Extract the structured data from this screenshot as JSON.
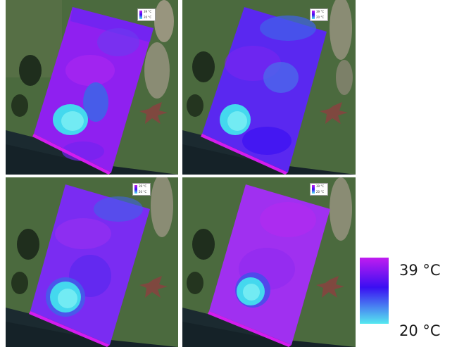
{
  "legend": {
    "max_label": "39 °C",
    "min_label": "20 °C",
    "max_color": "#c01cf0",
    "mid_color": "#3a0ff2",
    "min_color": "#55e8f0"
  },
  "mini_legend": {
    "max_label": "39 °C",
    "min_label": "20 °C"
  },
  "panels": [
    {
      "name": "thermal-panel-1",
      "dominant": "#8f20f0"
    },
    {
      "name": "thermal-panel-2",
      "dominant": "#5a28f0"
    },
    {
      "name": "thermal-panel-3",
      "dominant": "#7a2cf2"
    },
    {
      "name": "thermal-panel-4",
      "dominant": "#a030f0"
    }
  ]
}
